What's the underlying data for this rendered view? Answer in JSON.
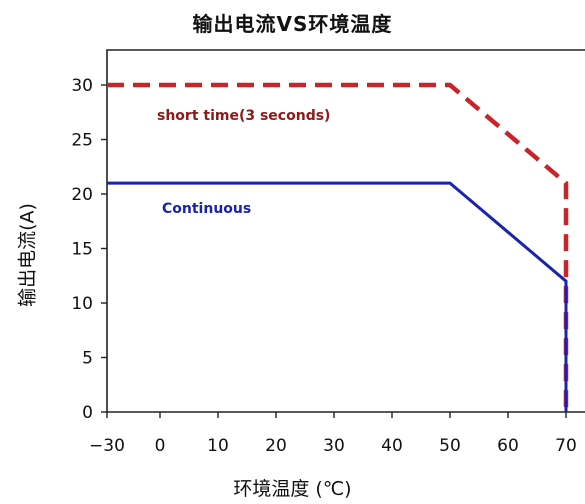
{
  "chart_data": {
    "type": "line",
    "title": "输出电流VS环境温度",
    "xlabel": "环境温度 (℃)",
    "ylabel": "输出电流(A)",
    "x_ticks": [
      -30,
      0,
      10,
      20,
      30,
      40,
      50,
      60,
      70
    ],
    "x_tick_labels": [
      "−30",
      "0",
      "10",
      "20",
      "30",
      "40",
      "50",
      "60",
      "70"
    ],
    "y_ticks": [
      0,
      5,
      10,
      15,
      20,
      25,
      30
    ],
    "ylim": [
      0,
      30
    ],
    "grid": false,
    "series": [
      {
        "name": "short time(3 seconds)",
        "color": "#c8252b",
        "style": "dashed",
        "points": [
          {
            "x": -30,
            "y": 30
          },
          {
            "x": 50,
            "y": 30
          },
          {
            "x": 70,
            "y": 21
          },
          {
            "x": 70,
            "y": 0
          }
        ]
      },
      {
        "name": "Continuous",
        "color": "#1a23b0",
        "style": "solid",
        "points": [
          {
            "x": -30,
            "y": 21
          },
          {
            "x": 50,
            "y": 21
          },
          {
            "x": 70,
            "y": 12
          },
          {
            "x": 70,
            "y": 0
          }
        ]
      }
    ]
  }
}
